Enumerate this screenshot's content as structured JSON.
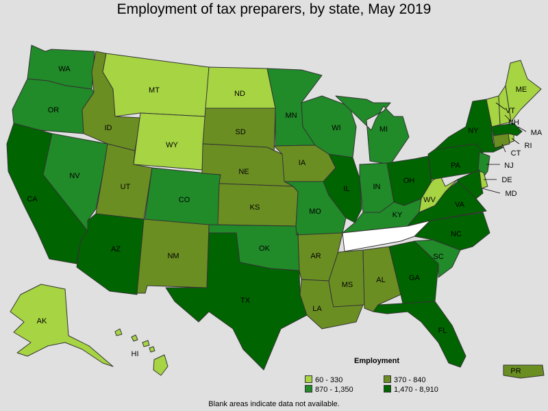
{
  "title": "Employment of tax preparers, by state, May 2019",
  "legend": {
    "title": "Employment",
    "items": [
      {
        "label": "60 - 330",
        "color": "#a6d443"
      },
      {
        "label": "870 - 1,350",
        "color": "#218a29"
      },
      {
        "label": "370 - 840",
        "color": "#6b8e23"
      },
      {
        "label": "1,470 - 8,910",
        "color": "#006400"
      }
    ]
  },
  "note": "Blank areas indicate data not available.",
  "colors": {
    "c1": "#a6d443",
    "c2": "#6b8e23",
    "c3": "#218a29",
    "c4": "#006400",
    "blank": "#ffffff",
    "background": "#e0e0e0"
  },
  "states": {
    "WA": {
      "label": "WA",
      "class": 3
    },
    "OR": {
      "label": "OR",
      "class": 3
    },
    "CA": {
      "label": "CA",
      "class": 4
    },
    "NV": {
      "label": "NV",
      "class": 3
    },
    "ID": {
      "label": "ID",
      "class": 2
    },
    "MT": {
      "label": "MT",
      "class": 1
    },
    "WY": {
      "label": "WY",
      "class": 1
    },
    "UT": {
      "label": "UT",
      "class": 2
    },
    "AZ": {
      "label": "AZ",
      "class": 4
    },
    "CO": {
      "label": "CO",
      "class": 3
    },
    "NM": {
      "label": "NM",
      "class": 2
    },
    "ND": {
      "label": "ND",
      "class": 1
    },
    "SD": {
      "label": "SD",
      "class": 2
    },
    "NE": {
      "label": "NE",
      "class": 2
    },
    "KS": {
      "label": "KS",
      "class": 2
    },
    "OK": {
      "label": "OK",
      "class": 3
    },
    "TX": {
      "label": "TX",
      "class": 4
    },
    "MN": {
      "label": "MN",
      "class": 3
    },
    "IA": {
      "label": "IA",
      "class": 2
    },
    "MO": {
      "label": "MO",
      "class": 3
    },
    "AR": {
      "label": "AR",
      "class": 2
    },
    "LA": {
      "label": "LA",
      "class": 2
    },
    "WI": {
      "label": "WI",
      "class": 3
    },
    "IL": {
      "label": "IL",
      "class": 4
    },
    "MI": {
      "label": "MI",
      "class": 3
    },
    "IN": {
      "label": "IN",
      "class": 3
    },
    "OH": {
      "label": "OH",
      "class": 4
    },
    "KY": {
      "label": "KY",
      "class": 3
    },
    "TN": {
      "label": "",
      "class": 0
    },
    "MS": {
      "label": "MS",
      "class": 2
    },
    "AL": {
      "label": "AL",
      "class": 2
    },
    "GA": {
      "label": "GA",
      "class": 4
    },
    "FL": {
      "label": "FL",
      "class": 4
    },
    "SC": {
      "label": "SC",
      "class": 3
    },
    "NC": {
      "label": "NC",
      "class": 4
    },
    "VA": {
      "label": "VA",
      "class": 4
    },
    "WV": {
      "label": "WV",
      "class": 1
    },
    "PA": {
      "label": "PA",
      "class": 4
    },
    "NY": {
      "label": "NY",
      "class": 4
    },
    "NJ": {
      "label": "NJ",
      "class": 3
    },
    "DE": {
      "label": "DE",
      "class": 1
    },
    "MD": {
      "label": "MD",
      "class": 4
    },
    "CT": {
      "label": "CT",
      "class": 2
    },
    "RI": {
      "label": "RI",
      "class": 1
    },
    "MA": {
      "label": "MA",
      "class": 4
    },
    "VT": {
      "label": "VT",
      "class": 1
    },
    "NH": {
      "label": "NH",
      "class": 1
    },
    "ME": {
      "label": "ME",
      "class": 1
    },
    "AK": {
      "label": "AK",
      "class": 1
    },
    "HI": {
      "label": "HI",
      "class": 1
    },
    "PR": {
      "label": "PR",
      "class": 2
    }
  }
}
